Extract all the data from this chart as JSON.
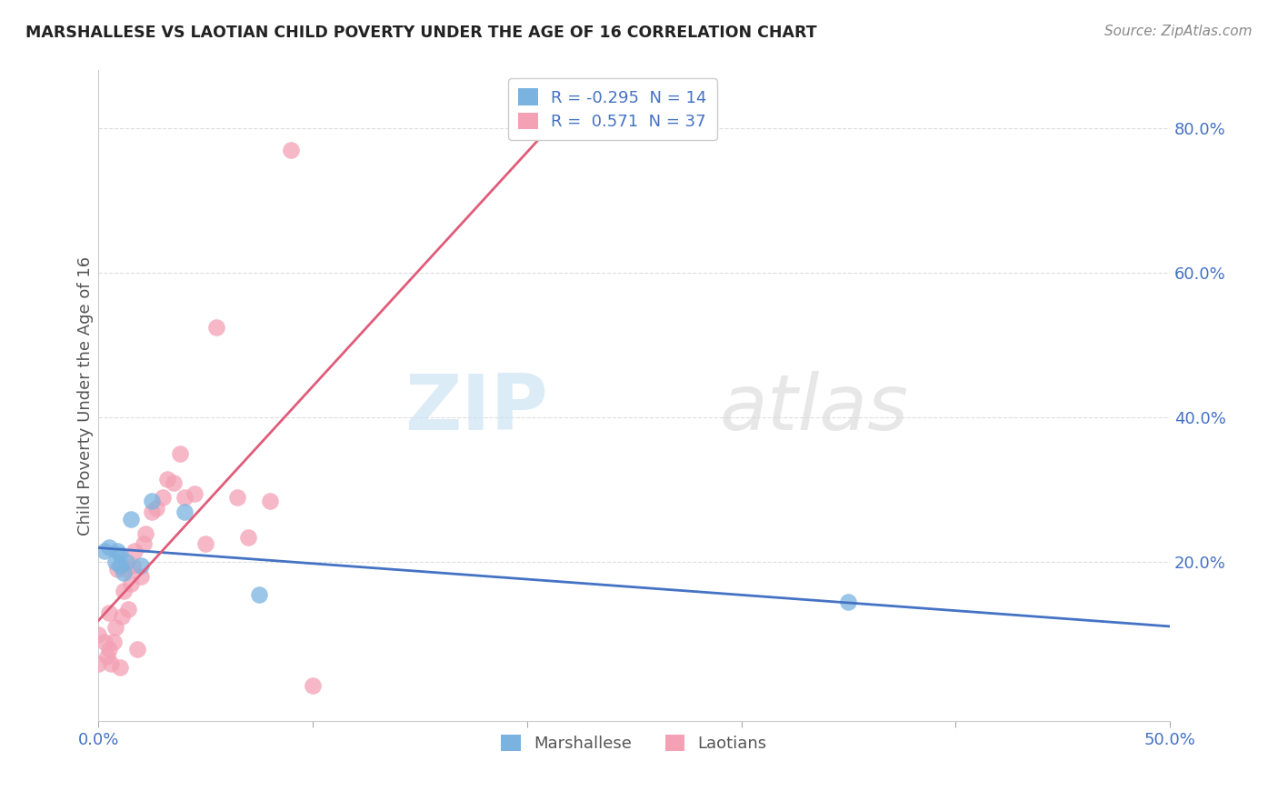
{
  "title": "MARSHALLESE VS LAOTIAN CHILD POVERTY UNDER THE AGE OF 16 CORRELATION CHART",
  "source": "Source: ZipAtlas.com",
  "ylabel": "Child Poverty Under the Age of 16",
  "xlim": [
    0.0,
    0.5
  ],
  "ylim": [
    -0.02,
    0.88
  ],
  "xticks": [
    0.0,
    0.1,
    0.2,
    0.3,
    0.4,
    0.5
  ],
  "xtick_labels": [
    "0.0%",
    "",
    "",
    "",
    "",
    "50.0%"
  ],
  "yticks": [
    0.2,
    0.4,
    0.6,
    0.8
  ],
  "ytick_labels": [
    "20.0%",
    "40.0%",
    "60.0%",
    "80.0%"
  ],
  "marshallese_x": [
    0.003,
    0.005,
    0.008,
    0.009,
    0.01,
    0.01,
    0.012,
    0.013,
    0.015,
    0.02,
    0.025,
    0.04,
    0.075,
    0.35
  ],
  "marshallese_y": [
    0.215,
    0.22,
    0.2,
    0.215,
    0.195,
    0.21,
    0.185,
    0.2,
    0.26,
    0.195,
    0.285,
    0.27,
    0.155,
    0.145
  ],
  "laotian_x": [
    0.0,
    0.0,
    0.003,
    0.004,
    0.005,
    0.005,
    0.006,
    0.007,
    0.008,
    0.009,
    0.01,
    0.011,
    0.012,
    0.013,
    0.014,
    0.015,
    0.016,
    0.017,
    0.018,
    0.02,
    0.021,
    0.022,
    0.025,
    0.027,
    0.03,
    0.032,
    0.035,
    0.038,
    0.04,
    0.045,
    0.05,
    0.055,
    0.065,
    0.07,
    0.08,
    0.09,
    0.1
  ],
  "laotian_y": [
    0.06,
    0.1,
    0.09,
    0.07,
    0.08,
    0.13,
    0.06,
    0.09,
    0.11,
    0.19,
    0.055,
    0.125,
    0.16,
    0.19,
    0.135,
    0.17,
    0.195,
    0.215,
    0.08,
    0.18,
    0.225,
    0.24,
    0.27,
    0.275,
    0.29,
    0.315,
    0.31,
    0.35,
    0.29,
    0.295,
    0.225,
    0.525,
    0.29,
    0.235,
    0.285,
    0.77,
    0.03
  ],
  "marshallese_color": "#7ab3e0",
  "laotian_color": "#f4a0b5",
  "marshallese_line_color": "#4472c4",
  "laotian_line_color": "#e05c7a",
  "legend_r_marshallese": "-0.295",
  "legend_n_marshallese": "14",
  "legend_r_laotian": "0.571",
  "legend_n_laotian": "37",
  "watermark_zip": "ZIP",
  "watermark_atlas": "atlas",
  "background_color": "#ffffff",
  "grid_color": "#dddddd",
  "tick_color": "#4472c4"
}
